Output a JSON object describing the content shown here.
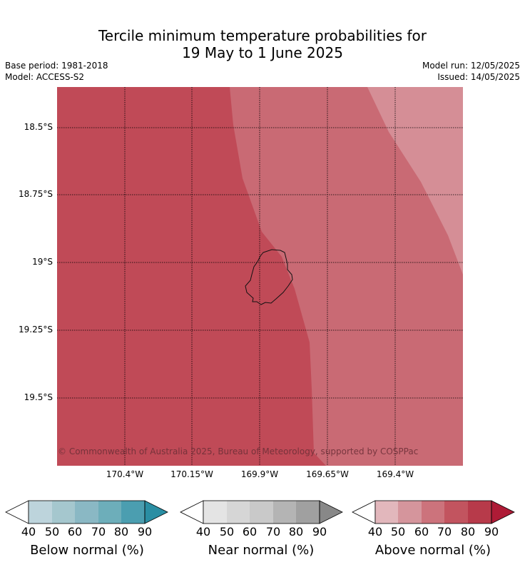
{
  "title_line1": "Tercile minimum temperature probabilities for",
  "title_line2": "19 May to 1 June 2025",
  "base_period": "Base period: 1981-2018",
  "model": "Model: ACCESS-S2",
  "model_run": "Model run: 12/05/2025",
  "issued": "Issued: 14/05/2025",
  "copyright": "© Commonwealth of Australia 2025, Bureau of Meteorology, supported by COSPPac",
  "lat_labels": [
    "18.5°S",
    "18.75°S",
    "19°S",
    "19.25°S",
    "19.5°S"
  ],
  "lon_labels": [
    "170.4°W",
    "170.15°W",
    "169.9°W",
    "169.65°W",
    "169.4°W"
  ],
  "map_fill": {
    "above_70_80": "#c04a57",
    "above_60_70": "#c96a74",
    "above_50_60": "#d58e96"
  },
  "colorbars": [
    {
      "label": "Below normal (%)",
      "ticks": [
        "40",
        "50",
        "60",
        "70",
        "80",
        "90"
      ],
      "colors": [
        "#ffffff",
        "#bdd4dc",
        "#a5c7ce",
        "#8ab8c4",
        "#6daeba",
        "#4b9eb0",
        "#2a8ea3"
      ]
    },
    {
      "label": "Near normal (%)",
      "ticks": [
        "40",
        "50",
        "60",
        "70",
        "80",
        "90"
      ],
      "colors": [
        "#ffffff",
        "#e4e4e4",
        "#d6d6d6",
        "#c9c9c9",
        "#b4b4b4",
        "#a0a0a0",
        "#888888"
      ]
    },
    {
      "label": "Above normal (%)",
      "ticks": [
        "40",
        "50",
        "60",
        "70",
        "80",
        "90"
      ],
      "colors": [
        "#ffffff",
        "#e2b7bc",
        "#d5959c",
        "#cc737c",
        "#c2545f",
        "#b73a4a",
        "#ae1b36"
      ]
    }
  ]
}
